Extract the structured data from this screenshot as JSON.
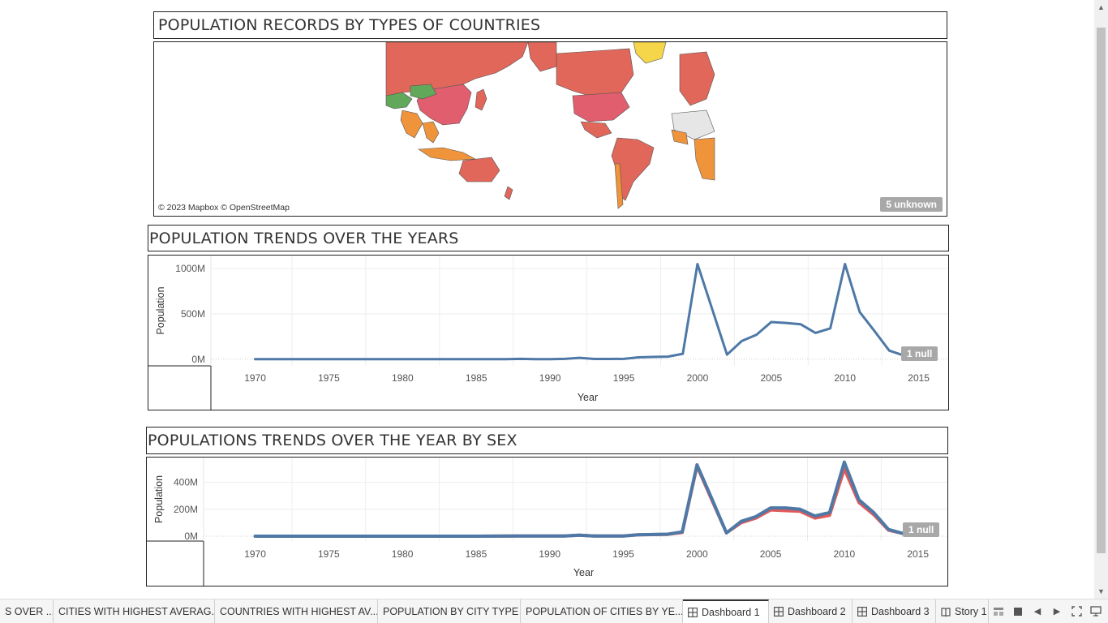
{
  "map_section": {
    "title": "POPULATION RECORDS BY TYPES OF COUNTRIES",
    "attribution": "© 2023 Mapbox © OpenStreetMap",
    "unknown_badge": "5 unknown",
    "colors": {
      "high": "#e0675a",
      "upper": "#e05e6e",
      "mid": "#f0943c",
      "low": "#f5d54a",
      "green": "#62a85a",
      "none": "#e6e6e6"
    }
  },
  "trend_section": {
    "title": "POPULATION TRENDS OVER THE YEARS",
    "null_badge": "1 null"
  },
  "sex_section": {
    "title": "POPULATIONS TRENDS OVER THE YEAR BY SEX",
    "null_badge": "1 null"
  },
  "chart_data": [
    {
      "type": "line",
      "xlabel": "Year",
      "ylabel": "Population",
      "xlim": [
        1967,
        2017
      ],
      "ylim": [
        -20,
        1090
      ],
      "x_ticks": [
        1970,
        1975,
        1980,
        1985,
        1990,
        1995,
        2000,
        2005,
        2010,
        2015
      ],
      "y_ticks": [
        0,
        500,
        1000
      ],
      "y_tick_labels": [
        "0M",
        "500M",
        "1000M"
      ],
      "grid": true,
      "color": "#4e79a7",
      "series": [
        {
          "x": [
            1970,
            1975,
            1980,
            1985,
            1987,
            1988,
            1989,
            1990,
            1991,
            1992,
            1993,
            1994,
            1995,
            1996,
            1997,
            1998,
            1999,
            2000,
            2001,
            2002,
            2003,
            2004,
            2005,
            2006,
            2007,
            2008,
            2009,
            2010,
            2011,
            2012,
            2013,
            2014
          ],
          "values": [
            0,
            0,
            0,
            0,
            0,
            3,
            1,
            1,
            3,
            15,
            2,
            2,
            3,
            20,
            25,
            28,
            60,
            1050,
            550,
            50,
            200,
            270,
            410,
            400,
            385,
            290,
            340,
            1050,
            520,
            310,
            95,
            40
          ]
        }
      ]
    },
    {
      "type": "line",
      "xlabel": "Year",
      "ylabel": "Population",
      "xlim": [
        1966.5,
        2017
      ],
      "ylim": [
        -12,
        560
      ],
      "x_ticks": [
        1970,
        1975,
        1980,
        1985,
        1990,
        1995,
        2000,
        2005,
        2010,
        2015
      ],
      "y_ticks": [
        0,
        200,
        400
      ],
      "y_tick_labels": [
        "0M",
        "200M",
        "400M"
      ],
      "grid": true,
      "series": [
        {
          "color": "#e05a5a",
          "x": [
            1970,
            1975,
            1980,
            1985,
            1988,
            1990,
            1991,
            1992,
            1993,
            1995,
            1996,
            1998,
            1999,
            2000,
            2001,
            2002,
            2003,
            2004,
            2005,
            2006,
            2007,
            2008,
            2009,
            2010,
            2011,
            2012,
            2013,
            2014
          ],
          "values": [
            0,
            0,
            0,
            0,
            2,
            1,
            2,
            7,
            1,
            2,
            10,
            14,
            28,
            520,
            270,
            25,
            100,
            135,
            195,
            190,
            185,
            135,
            155,
            500,
            250,
            160,
            45,
            20
          ]
        },
        {
          "color": "#4e79a7",
          "x": [
            1970,
            1975,
            1980,
            1985,
            1988,
            1990,
            1991,
            1992,
            1993,
            1995,
            1996,
            1998,
            1999,
            2000,
            2001,
            2002,
            2003,
            2004,
            2005,
            2006,
            2007,
            2008,
            2009,
            2010,
            2011,
            2012,
            2013,
            2014
          ],
          "values": [
            0,
            0,
            0,
            0,
            2,
            1,
            2,
            8,
            1,
            2,
            10,
            15,
            32,
            530,
            280,
            25,
            110,
            145,
            210,
            210,
            200,
            150,
            175,
            550,
            270,
            175,
            50,
            20
          ]
        }
      ]
    }
  ],
  "tabs": [
    {
      "label": "S OVER ...",
      "icon": "",
      "active": false
    },
    {
      "label": "CITIES WITH HIGHEST AVERAG...",
      "icon": "",
      "active": false
    },
    {
      "label": "COUNTRIES WITH HIGHEST AV...",
      "icon": "",
      "active": false
    },
    {
      "label": "POPULATION BY CITY TYPE",
      "icon": "",
      "active": false
    },
    {
      "label": "POPULATION OF CITIES BY YE...",
      "icon": "",
      "active": false
    },
    {
      "label": "Dashboard 1",
      "icon": "dashboard-icon",
      "active": true
    },
    {
      "label": "Dashboard 2",
      "icon": "dashboard-icon",
      "active": false
    },
    {
      "label": "Dashboard 3",
      "icon": "dashboard-icon",
      "active": false
    },
    {
      "label": "Story 1",
      "icon": "story-icon",
      "active": false
    }
  ]
}
